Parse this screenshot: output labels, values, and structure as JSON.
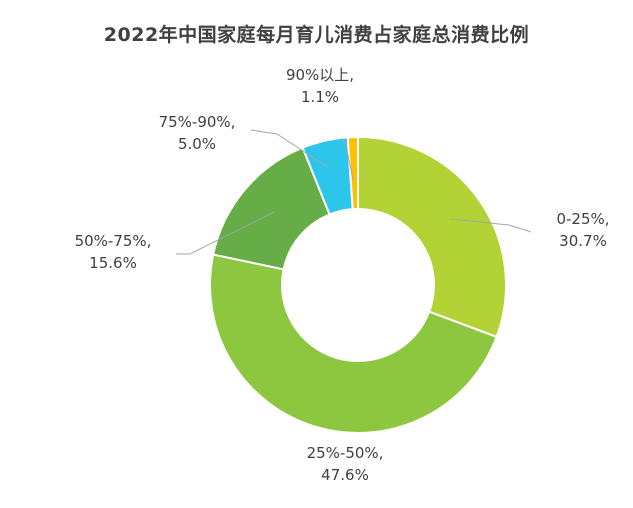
{
  "chart_data": {
    "type": "pie",
    "title": "2022年中国家庭每月育儿消费占家庭总消费比例",
    "categories": [
      "0-25%",
      "25%-50%",
      "50%-75%",
      "75%-90%",
      "90%以上"
    ],
    "values": [
      30.7,
      47.6,
      15.6,
      5.0,
      1.1
    ],
    "value_labels": [
      "30.7%",
      "47.6%",
      "15.6%",
      "5.0%",
      "1.1%"
    ],
    "colors": [
      "#b2d235",
      "#8dc63f",
      "#66ac47",
      "#2dc6ea",
      "#ffc000"
    ],
    "legend": "none"
  }
}
